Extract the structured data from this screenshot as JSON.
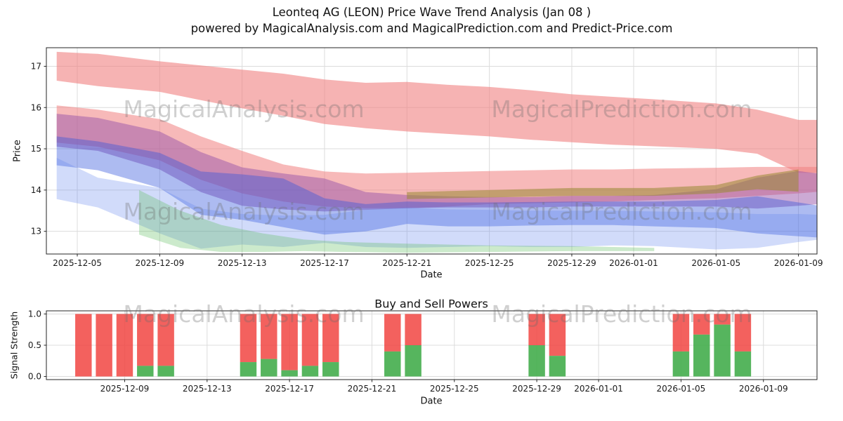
{
  "title": "Leonteq AG (LEON) Price Wave Trend Analysis (Jan 08 )",
  "subtitle": "powered by MagicalAnalysis.com and MagicalPrediction.com and Predict-Price.com",
  "watermarks": {
    "left": "MagicalAnalysis.com",
    "right": "MagicalPrediction.com"
  },
  "chart_data": [
    {
      "type": "area",
      "title": "",
      "xlabel": "Date",
      "ylabel": "Price",
      "ylim": [
        12.45,
        17.45
      ],
      "yticks": [
        13,
        14,
        15,
        16,
        17
      ],
      "xticks": [
        "2025-12-05",
        "2025-12-09",
        "2025-12-13",
        "2025-12-17",
        "2025-12-21",
        "2025-12-25",
        "2025-12-29",
        "2026-01-01",
        "2026-01-05",
        "2026-01-09"
      ],
      "x_range_days": [
        -0.5,
        36.9
      ],
      "epoch": "2025-12-04",
      "grid": true,
      "legend": "none",
      "bands": [
        {
          "name": "upper-resistance",
          "color": "#f08080",
          "opacity": 0.6,
          "x": [
            "2025-12-04",
            "2025-12-06",
            "2025-12-09",
            "2025-12-11",
            "2025-12-13",
            "2025-12-15",
            "2025-12-17",
            "2025-12-19",
            "2025-12-21",
            "2025-12-23",
            "2025-12-25",
            "2025-12-27",
            "2025-12-29",
            "2025-12-31",
            "2026-01-02",
            "2026-01-05",
            "2026-01-07",
            "2026-01-09",
            "2026-01-10"
          ],
          "top": [
            17.35,
            17.3,
            17.12,
            17.02,
            16.92,
            16.82,
            16.68,
            16.6,
            16.62,
            16.55,
            16.5,
            16.42,
            16.32,
            16.26,
            16.2,
            16.1,
            15.95,
            15.7,
            15.7
          ],
          "bottom": [
            16.65,
            16.52,
            16.38,
            16.18,
            15.98,
            15.8,
            15.6,
            15.5,
            15.42,
            15.36,
            15.3,
            15.22,
            15.16,
            15.1,
            15.06,
            15.0,
            14.88,
            14.42,
            14.42
          ]
        },
        {
          "name": "sell-pressure",
          "color": "#f08080",
          "opacity": 0.55,
          "x": [
            "2025-12-04",
            "2025-12-06",
            "2025-12-09",
            "2025-12-11",
            "2025-12-13",
            "2025-12-15",
            "2025-12-17",
            "2025-12-19",
            "2025-12-21",
            "2025-12-23",
            "2025-12-25",
            "2025-12-27",
            "2025-12-29",
            "2025-12-31",
            "2026-01-02",
            "2026-01-05",
            "2026-01-07",
            "2026-01-09",
            "2026-01-10"
          ],
          "top": [
            16.05,
            15.95,
            15.72,
            15.3,
            14.95,
            14.62,
            14.45,
            14.4,
            14.42,
            14.44,
            14.46,
            14.48,
            14.5,
            14.5,
            14.52,
            14.54,
            14.56,
            14.56,
            14.56
          ],
          "bottom": [
            15.15,
            15.05,
            14.72,
            14.25,
            13.92,
            13.72,
            13.6,
            13.56,
            13.56,
            13.6,
            13.66,
            13.68,
            13.7,
            13.72,
            13.76,
            13.8,
            13.86,
            13.92,
            13.96
          ]
        },
        {
          "name": "mid-trend-purple",
          "color": "#9955aa",
          "opacity": 0.5,
          "x": [
            "2025-12-04",
            "2025-12-06",
            "2025-12-09",
            "2025-12-11",
            "2025-12-13",
            "2025-12-15",
            "2025-12-17",
            "2025-12-19",
            "2025-12-21",
            "2025-12-23",
            "2025-12-25",
            "2025-12-27",
            "2025-12-29",
            "2025-12-31",
            "2026-01-02",
            "2026-01-05",
            "2026-01-07",
            "2026-01-09",
            "2026-01-10"
          ],
          "top": [
            15.85,
            15.75,
            15.42,
            14.92,
            14.55,
            14.4,
            14.28,
            13.95,
            13.88,
            13.85,
            13.83,
            13.83,
            13.86,
            13.86,
            13.88,
            14.02,
            14.3,
            14.46,
            14.4
          ],
          "bottom": [
            15.05,
            14.95,
            14.5,
            13.95,
            13.62,
            13.53,
            13.48,
            13.52,
            13.56,
            13.58,
            13.58,
            13.58,
            13.6,
            13.6,
            13.6,
            13.6,
            13.55,
            13.62,
            13.66
          ]
        },
        {
          "name": "wave-blue",
          "color": "#3355dd",
          "opacity": 0.4,
          "x": [
            "2025-12-04",
            "2025-12-06",
            "2025-12-09",
            "2025-12-11",
            "2025-12-13",
            "2025-12-15",
            "2025-12-17",
            "2025-12-19",
            "2025-12-21",
            "2025-12-23",
            "2025-12-25",
            "2025-12-27",
            "2025-12-29",
            "2025-12-31",
            "2026-01-02",
            "2026-01-05",
            "2026-01-07",
            "2026-01-09",
            "2026-01-10"
          ],
          "top": [
            15.3,
            15.18,
            14.9,
            14.45,
            14.38,
            14.28,
            13.8,
            13.66,
            13.72,
            13.7,
            13.7,
            13.71,
            13.72,
            13.72,
            13.72,
            13.76,
            13.85,
            13.7,
            13.62
          ],
          "bottom": [
            14.6,
            14.48,
            14.05,
            13.4,
            13.28,
            13.1,
            12.92,
            13.0,
            13.18,
            13.12,
            13.12,
            13.14,
            13.15,
            13.15,
            13.12,
            13.08,
            12.95,
            12.88,
            12.85
          ]
        },
        {
          "name": "wave-light-blue",
          "color": "#6688ee",
          "opacity": 0.3,
          "x": [
            "2025-12-04",
            "2025-12-06",
            "2025-12-09",
            "2025-12-11",
            "2025-12-13",
            "2025-12-15",
            "2025-12-17",
            "2025-12-19",
            "2025-12-21",
            "2025-12-23",
            "2025-12-25",
            "2025-12-27",
            "2025-12-29",
            "2025-12-31",
            "2026-01-02",
            "2026-01-05",
            "2026-01-07",
            "2026-01-09",
            "2026-01-10"
          ],
          "top": [
            14.78,
            14.3,
            14.05,
            13.55,
            13.42,
            13.38,
            13.4,
            13.52,
            13.58,
            13.53,
            13.52,
            13.5,
            13.5,
            13.5,
            13.48,
            13.46,
            13.42,
            13.42,
            13.4
          ],
          "bottom": [
            13.78,
            13.58,
            12.95,
            12.58,
            12.68,
            12.62,
            12.72,
            12.62,
            12.6,
            12.62,
            12.64,
            12.62,
            12.62,
            12.66,
            12.64,
            12.56,
            12.6,
            12.74,
            12.8
          ]
        },
        {
          "name": "support-green",
          "color": "#55bb55",
          "opacity": 0.3,
          "x": [
            "2025-12-08",
            "2025-12-10",
            "2025-12-12",
            "2025-12-14",
            "2025-12-16",
            "2025-12-18",
            "2025-12-21",
            "2025-12-25",
            "2025-12-29",
            "2026-01-02"
          ],
          "top": [
            14.0,
            13.5,
            13.15,
            12.95,
            12.8,
            12.74,
            12.7,
            12.66,
            12.64,
            12.6
          ],
          "bottom": [
            12.92,
            12.6,
            12.5,
            12.5,
            12.52,
            12.5,
            12.48,
            12.5,
            12.52,
            12.52
          ]
        },
        {
          "name": "trend-olive",
          "color": "#998833",
          "opacity": 0.55,
          "x": [
            "2025-12-21",
            "2025-12-25",
            "2025-12-29",
            "2026-01-02",
            "2026-01-05",
            "2026-01-07",
            "2026-01-09"
          ],
          "top": [
            13.95,
            14.0,
            14.05,
            14.05,
            14.12,
            14.35,
            14.5
          ],
          "bottom": [
            13.78,
            13.82,
            13.86,
            13.86,
            13.92,
            14.02,
            13.96
          ]
        }
      ]
    },
    {
      "type": "bar",
      "title": "Buy and Sell Powers",
      "xlabel": "Date",
      "ylabel": "Signal Strength",
      "ylim": [
        -0.05,
        1.05
      ],
      "yticks": [
        "0.0",
        "0.5",
        "1.0"
      ],
      "xticks": [
        "2025-12-09",
        "2025-12-13",
        "2025-12-17",
        "2025-12-21",
        "2025-12-25",
        "2025-12-29",
        "2026-01-01",
        "2026-01-05",
        "2026-01-09"
      ],
      "x_range_days": [
        1.2,
        38.6
      ],
      "epoch": "2025-12-04",
      "bar_width_days": 0.8,
      "grid": true,
      "series": [
        {
          "name": "buy",
          "color": "#44ad4c",
          "position": "bottom"
        },
        {
          "name": "sell",
          "color": "#f14542",
          "position": "top"
        }
      ],
      "bars": [
        {
          "date": "2025-12-07",
          "buy": 0.0,
          "sell": 1.0
        },
        {
          "date": "2025-12-08",
          "buy": 0.0,
          "sell": 1.0
        },
        {
          "date": "2025-12-09",
          "buy": 0.0,
          "sell": 1.0
        },
        {
          "date": "2025-12-10",
          "buy": 0.17,
          "sell": 0.83
        },
        {
          "date": "2025-12-11",
          "buy": 0.17,
          "sell": 0.83
        },
        {
          "date": "2025-12-15",
          "buy": 0.23,
          "sell": 0.77
        },
        {
          "date": "2025-12-16",
          "buy": 0.28,
          "sell": 0.72
        },
        {
          "date": "2025-12-17",
          "buy": 0.1,
          "sell": 0.9
        },
        {
          "date": "2025-12-18",
          "buy": 0.17,
          "sell": 0.83
        },
        {
          "date": "2025-12-19",
          "buy": 0.23,
          "sell": 0.77
        },
        {
          "date": "2025-12-22",
          "buy": 0.4,
          "sell": 0.6
        },
        {
          "date": "2025-12-23",
          "buy": 0.5,
          "sell": 0.5
        },
        {
          "date": "2025-12-29",
          "buy": 0.5,
          "sell": 0.5
        },
        {
          "date": "2025-12-30",
          "buy": 0.33,
          "sell": 0.67
        },
        {
          "date": "2026-01-05",
          "buy": 0.4,
          "sell": 0.6
        },
        {
          "date": "2026-01-06",
          "buy": 0.67,
          "sell": 0.33
        },
        {
          "date": "2026-01-07",
          "buy": 0.83,
          "sell": 0.17
        },
        {
          "date": "2026-01-08",
          "buy": 0.4,
          "sell": 0.6
        }
      ]
    }
  ]
}
